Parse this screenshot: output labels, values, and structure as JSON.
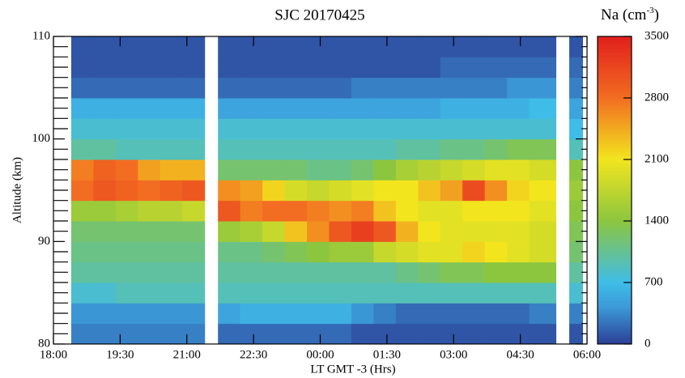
{
  "chart_data": {
    "type": "heatmap",
    "title": "SJC 20170425",
    "xlabel": "LT GMT -3 (Hrs)",
    "ylabel": "Altitude (km)",
    "colorbar_label": [
      "Na (cm",
      "-3",
      ")"
    ],
    "xlim": [
      18,
      30
    ],
    "xticks": [
      {
        "value": 18,
        "label": "18:00"
      },
      {
        "value": 19.5,
        "label": "19:30"
      },
      {
        "value": 21,
        "label": "21:00"
      },
      {
        "value": 22.5,
        "label": "22:30"
      },
      {
        "value": 24,
        "label": "00:00"
      },
      {
        "value": 25.5,
        "label": "01:30"
      },
      {
        "value": 27,
        "label": "03:00"
      },
      {
        "value": 28.5,
        "label": "04:30"
      },
      {
        "value": 30,
        "label": "06:00"
      }
    ],
    "ylim": [
      80,
      110
    ],
    "yticks": [
      80,
      90,
      100,
      110
    ],
    "yminorticks": [
      81,
      82,
      83,
      84,
      85,
      86,
      87,
      88,
      89,
      91,
      92,
      93,
      94,
      95,
      96,
      97,
      98,
      99,
      101,
      102,
      103,
      104,
      105,
      106,
      107,
      108,
      109
    ],
    "clim": [
      0,
      3500
    ],
    "cticks": [
      0,
      700,
      1400,
      2100,
      2800,
      3500
    ],
    "x_edges": [
      18.4,
      18.9,
      19.4,
      19.9,
      20.4,
      20.9,
      21.4,
      21.7,
      22.2,
      22.7,
      23.2,
      23.7,
      24.2,
      24.7,
      25.2,
      25.7,
      26.2,
      26.7,
      27.2,
      27.7,
      28.2,
      28.7,
      29.3,
      29.6,
      29.9
    ],
    "y_edges": [
      80,
      82,
      84,
      86,
      88,
      90,
      92,
      94,
      96,
      98,
      100,
      102,
      104,
      106,
      108,
      110
    ],
    "values": [
      [
        300,
        400,
        800,
        1000,
        1100,
        1200,
        1500,
        2800,
        2700,
        1000,
        800,
        600,
        200,
        100,
        100
      ],
      [
        300,
        400,
        800,
        1000,
        1100,
        1200,
        1500,
        3000,
        2900,
        1000,
        800,
        600,
        200,
        100,
        100
      ],
      [
        300,
        400,
        900,
        1000,
        1100,
        1200,
        1600,
        2900,
        2800,
        900,
        800,
        600,
        200,
        100,
        100
      ],
      [
        300,
        400,
        900,
        1000,
        1100,
        1200,
        1700,
        2800,
        2500,
        900,
        800,
        600,
        200,
        100,
        100
      ],
      [
        300,
        400,
        900,
        1000,
        1100,
        1200,
        1700,
        2900,
        2400,
        900,
        800,
        600,
        200,
        100,
        100
      ],
      [
        300,
        400,
        900,
        1000,
        1100,
        1200,
        1800,
        3000,
        2400,
        900,
        800,
        600,
        200,
        100,
        100
      ],
      null,
      [
        200,
        500,
        900,
        1000,
        1100,
        1500,
        3000,
        2600,
        1200,
        900,
        800,
        500,
        200,
        100,
        100
      ],
      [
        200,
        600,
        900,
        1000,
        1100,
        1600,
        2700,
        2500,
        1200,
        900,
        800,
        500,
        200,
        100,
        100
      ],
      [
        200,
        600,
        900,
        1000,
        1200,
        1800,
        2800,
        2200,
        1200,
        900,
        800,
        500,
        200,
        100,
        100
      ],
      [
        200,
        600,
        900,
        1000,
        1300,
        2300,
        2800,
        1900,
        1200,
        900,
        800,
        500,
        200,
        100,
        100
      ],
      [
        200,
        600,
        900,
        1000,
        1400,
        2600,
        2700,
        1800,
        1100,
        900,
        800,
        500,
        200,
        100,
        100
      ],
      [
        200,
        600,
        900,
        1000,
        1500,
        3000,
        2600,
        1900,
        1100,
        900,
        800,
        500,
        200,
        100,
        100
      ],
      [
        100,
        400,
        900,
        1000,
        1500,
        3200,
        2700,
        2000,
        1200,
        900,
        800,
        500,
        300,
        100,
        100
      ],
      [
        100,
        300,
        900,
        1000,
        1800,
        3000,
        2300,
        2100,
        1400,
        900,
        800,
        500,
        300,
        100,
        100
      ],
      [
        100,
        200,
        900,
        1100,
        1900,
        2400,
        2100,
        2100,
        1600,
        1000,
        800,
        500,
        300,
        100,
        100
      ],
      [
        100,
        200,
        900,
        1200,
        2000,
        2100,
        2000,
        2300,
        1700,
        1000,
        800,
        500,
        300,
        100,
        100
      ],
      [
        100,
        200,
        900,
        1300,
        2000,
        2000,
        2000,
        2500,
        1800,
        1100,
        800,
        600,
        300,
        200,
        100
      ],
      [
        100,
        200,
        900,
        1300,
        2200,
        2000,
        2100,
        3100,
        1900,
        1100,
        800,
        600,
        300,
        200,
        100
      ],
      [
        100,
        200,
        900,
        1400,
        2100,
        2000,
        2100,
        2600,
        2000,
        1200,
        800,
        600,
        300,
        200,
        100
      ],
      [
        100,
        200,
        900,
        1400,
        2000,
        2000,
        2100,
        2200,
        2000,
        1300,
        800,
        600,
        400,
        200,
        100
      ],
      [
        100,
        300,
        900,
        1400,
        1900,
        1900,
        2000,
        2100,
        1900,
        1300,
        800,
        700,
        400,
        200,
        100
      ],
      null,
      [
        100,
        300,
        800,
        1000,
        1200,
        1300,
        1400,
        1500,
        1400,
        900,
        700,
        500,
        300,
        200,
        100
      ]
    ]
  }
}
